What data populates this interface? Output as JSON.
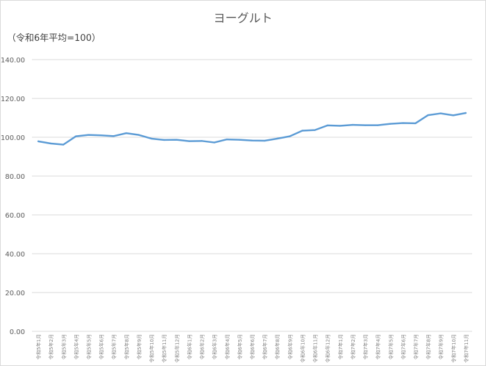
{
  "chart_data": {
    "type": "line",
    "title": "ヨーグルト",
    "unit_label": "（令和6年平均=100）",
    "ylim": [
      0,
      140
    ],
    "yticks": [
      "0.00",
      "20.00",
      "40.00",
      "60.00",
      "80.00",
      "100.00",
      "120.00",
      "140.00"
    ],
    "grid": true,
    "legend": "none",
    "line_color": "#5b9bd5",
    "categories": [
      "令和5年1月",
      "令和5年2月",
      "令和5年3月",
      "令和5年4月",
      "令和5年5月",
      "令和5年6月",
      "令和5年7月",
      "令和5年8月",
      "令和5年9月",
      "令和5年10月",
      "令和5年11月",
      "令和5年12月",
      "令和6年1月",
      "令和6年2月",
      "令和6年3月",
      "令和6年4月",
      "令和6年5月",
      "令和6年6月",
      "令和6年7月",
      "令和6年8月",
      "令和6年9月",
      "令和6年10月",
      "令和6年11月",
      "令和6年12月",
      "令和7年1月",
      "令和7年2月",
      "令和7年3月",
      "令和7年4月",
      "令和7年5月",
      "令和7年6月",
      "令和7年7月",
      "令和7年8月",
      "令和7年9月",
      "令和7年10月",
      "令和7年11月"
    ],
    "values": [
      97.9,
      96.8,
      96.2,
      100.5,
      101.2,
      101.0,
      100.6,
      102.1,
      101.2,
      99.3,
      98.6,
      98.7,
      98.0,
      98.1,
      97.3,
      98.9,
      98.7,
      98.3,
      98.2,
      99.3,
      100.5,
      103.4,
      103.7,
      106.1,
      105.9,
      106.4,
      106.2,
      106.2,
      106.9,
      107.3,
      107.2,
      111.4,
      112.3,
      111.3,
      112.5
    ]
  }
}
